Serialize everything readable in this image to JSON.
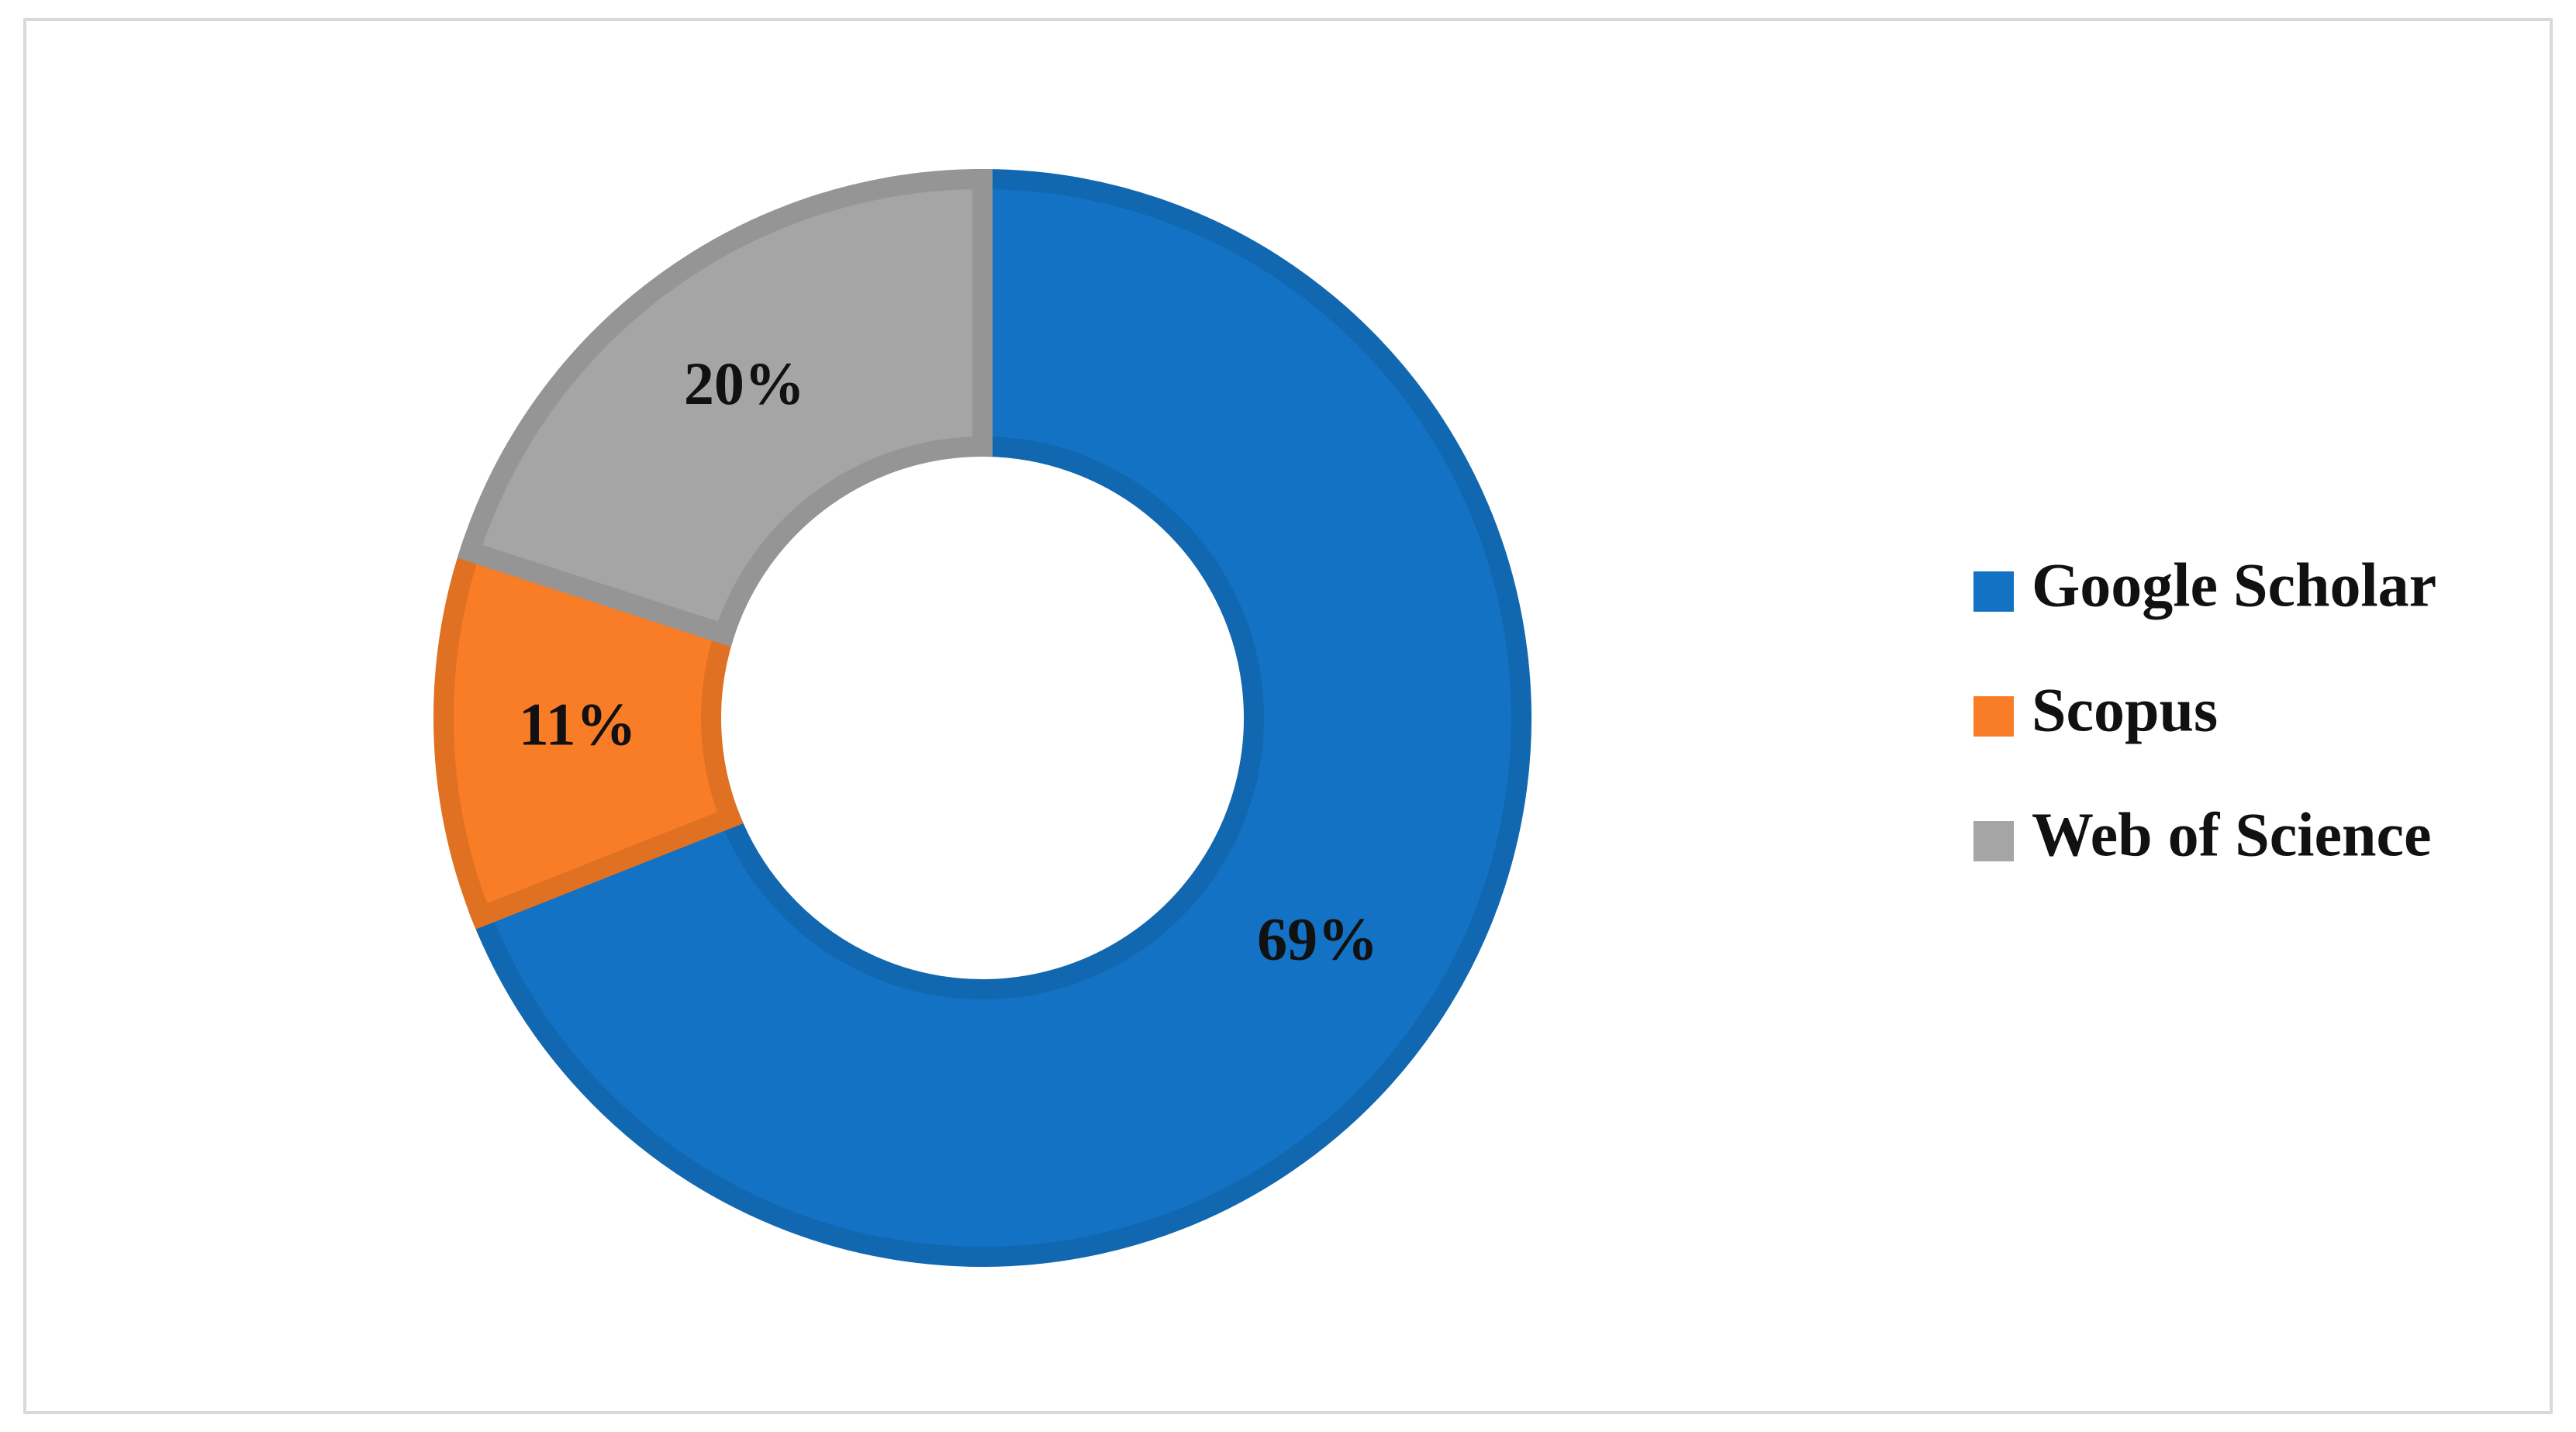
{
  "chart_data": {
    "type": "pie",
    "categories": [
      "Google Scholar",
      "Scopus",
      "Web of Science"
    ],
    "values": [
      69,
      11,
      20
    ],
    "value_labels": [
      "69%",
      "11%",
      "20%"
    ],
    "colors": [
      "#1372c4",
      "#f97d26",
      "#a5a5a5"
    ],
    "donut": true,
    "legend": "right"
  }
}
